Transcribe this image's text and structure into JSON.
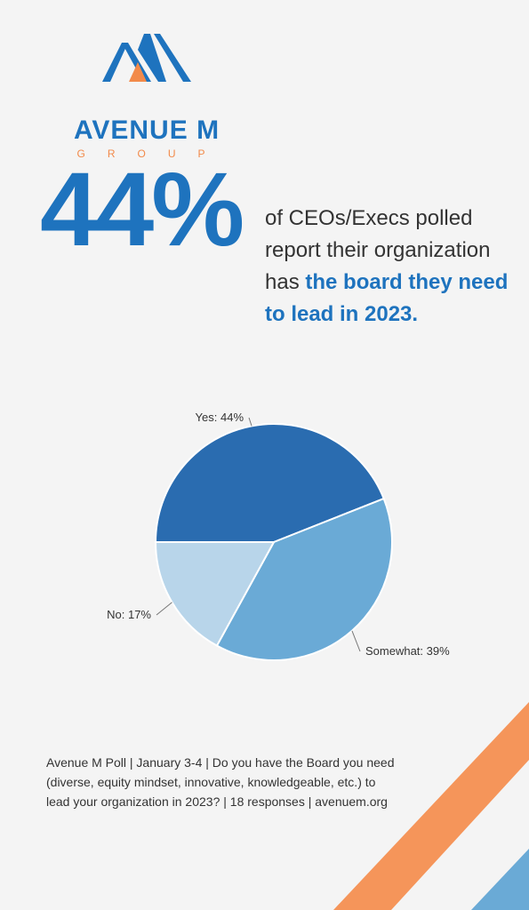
{
  "brand": {
    "name": "AVENUE M",
    "sub": "GROUP",
    "colors": {
      "blue": "#1e73be",
      "orange": "#f28a4a"
    }
  },
  "stat": {
    "value": "44%",
    "text_before": "of CEOs/Execs polled report their organization has",
    "text_highlight": "the board they need to lead in 2023."
  },
  "chart_data": {
    "type": "pie",
    "title": "",
    "slices": [
      {
        "label": "Yes",
        "value": 44,
        "display": "Yes: 44%",
        "color": "#2a6cb0"
      },
      {
        "label": "Somewhat",
        "value": 39,
        "display": "Somewhat: 39%",
        "color": "#6aaad6"
      },
      {
        "label": "No",
        "value": 17,
        "display": "No: 17%",
        "color": "#b8d5ea"
      }
    ]
  },
  "footer": {
    "text": "Avenue M Poll | January 3-4 | Do you have the Board you need (diverse, equity mindset, innovative, knowledgeable, etc.) to lead your organization in 2023? | 18 responses | avenuem.org"
  }
}
